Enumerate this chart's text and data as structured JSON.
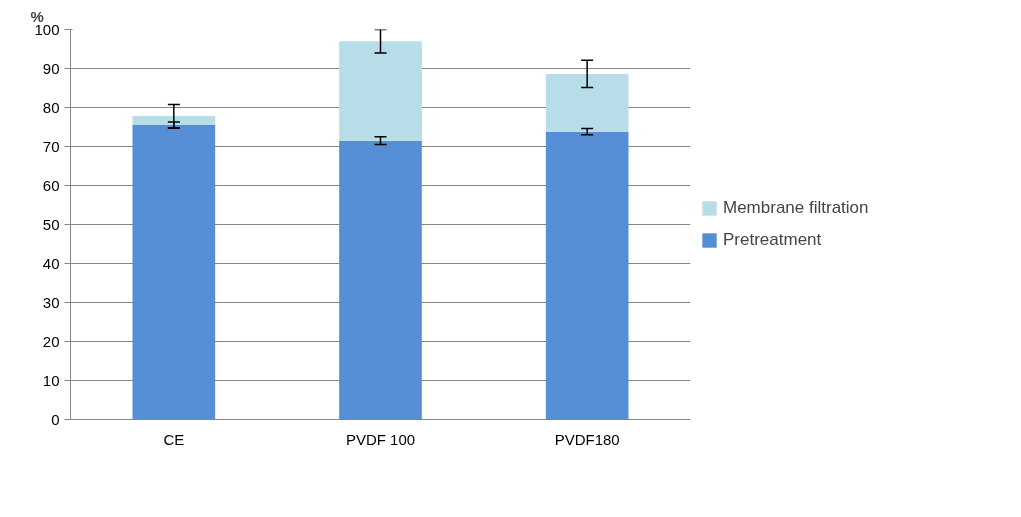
{
  "chart_data": {
    "type": "bar",
    "stacked": true,
    "ylabel": "%",
    "categories": [
      "CE",
      "PVDF 100",
      "PVDF180"
    ],
    "series": [
      {
        "name": "Pretreatment",
        "color": "#558ed5",
        "values": [
          75.5,
          71.5,
          73.8
        ],
        "errors": [
          0.8,
          1,
          0.8
        ]
      },
      {
        "name": "Membrane filtration",
        "color": "#b7dee8",
        "values": [
          2.3,
          25.5,
          14.8
        ],
        "errors": [
          3,
          3,
          3.5
        ]
      }
    ],
    "ylim": [
      0,
      100
    ],
    "yticks": [
      0,
      10,
      20,
      30,
      40,
      50,
      60,
      70,
      80,
      90,
      100
    ],
    "grid": "y",
    "legend": "right"
  }
}
